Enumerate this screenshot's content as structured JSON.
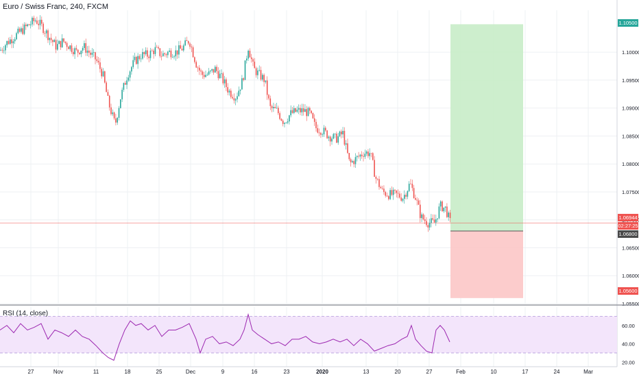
{
  "header": {
    "title": "Euro / Swiss Franc, 240, FXCM"
  },
  "rsi": {
    "label": "RSI (14, close)"
  },
  "badges": {
    "target": {
      "text": "1.10500",
      "color": "#26a69a"
    },
    "current": {
      "text": "1.06944",
      "color": "#ef5350"
    },
    "countdown": {
      "text": "02:27:25",
      "color": "#ef5350"
    },
    "entry": {
      "text": "1.06800",
      "color": "#4a4a4a"
    },
    "stop": {
      "text": "1.05600",
      "color": "#ef5350"
    }
  },
  "colors": {
    "up": "#26a69a",
    "down": "#ef5350",
    "rsi_line": "#9c27b0",
    "rsi_band": "#f3e5fb",
    "profit_zone": "#c8ecc8",
    "loss_zone": "#fcc7c7",
    "grid": "#eef0f3"
  },
  "chart_data": [
    {
      "type": "candlestick",
      "title": "Euro / Swiss Franc, 240, FXCM",
      "ylim": [
        1.055,
        1.1075
      ],
      "y_ticks": [
        "1.10000",
        "1.09500",
        "1.09000",
        "1.08500",
        "1.08000",
        "1.07500",
        "1.07000",
        "1.06500",
        "1.06000",
        "1.05500"
      ],
      "y_tick_values": [
        1.1,
        1.095,
        1.09,
        1.085,
        1.08,
        1.075,
        1.07,
        1.065,
        1.06,
        1.055
      ],
      "x_ticks": [
        "27",
        "Nov",
        "11",
        "18",
        "25",
        "Dec",
        "9",
        "16",
        "23",
        "2020",
        "13",
        "20",
        "27",
        "Feb",
        "10",
        "17",
        "24",
        "Mar"
      ],
      "grid": true,
      "close_path": [
        [
          0,
          1.1003
        ],
        [
          10,
          1.1017
        ],
        [
          20,
          1.1027
        ],
        [
          30,
          1.1037
        ],
        [
          40,
          1.1047
        ],
        [
          52,
          1.1058
        ],
        [
          62,
          1.1045
        ],
        [
          72,
          1.1027
        ],
        [
          82,
          1.101
        ],
        [
          92,
          1.102
        ],
        [
          102,
          1.101
        ],
        [
          112,
          1.1
        ],
        [
          122,
          1.101
        ],
        [
          132,
          1.0997
        ],
        [
          140,
          1.0987
        ],
        [
          150,
          1.096
        ],
        [
          158,
          1.091
        ],
        [
          168,
          1.087
        ],
        [
          176,
          1.092
        ],
        [
          186,
          1.096
        ],
        [
          196,
          1.0983
        ],
        [
          206,
          1.0995
        ],
        [
          216,
          1.0995
        ],
        [
          226,
          1.1005
        ],
        [
          236,
          1.0995
        ],
        [
          246,
          1.1
        ],
        [
          256,
          1.1
        ],
        [
          266,
          1.1007
        ],
        [
          276,
          1.1022
        ],
        [
          286,
          1.098
        ],
        [
          294,
          1.096
        ],
        [
          304,
          1.096
        ],
        [
          314,
          1.097
        ],
        [
          324,
          1.0952
        ],
        [
          334,
          1.093
        ],
        [
          344,
          1.092
        ],
        [
          354,
          1.095
        ],
        [
          362,
          1.101
        ],
        [
          370,
          1.097
        ],
        [
          378,
          1.096
        ],
        [
          386,
          1.095
        ],
        [
          394,
          1.09
        ],
        [
          404,
          1.0895
        ],
        [
          414,
          1.0875
        ],
        [
          424,
          1.089
        ],
        [
          434,
          1.0895
        ],
        [
          444,
          1.0895
        ],
        [
          452,
          1.089
        ],
        [
          460,
          1.0865
        ],
        [
          470,
          1.086
        ],
        [
          480,
          1.085
        ],
        [
          490,
          1.0845
        ],
        [
          500,
          1.0855
        ],
        [
          510,
          1.08
        ],
        [
          520,
          1.081
        ],
        [
          530,
          1.082
        ],
        [
          540,
          1.082
        ],
        [
          548,
          1.0775
        ],
        [
          558,
          1.075
        ],
        [
          568,
          1.0745
        ],
        [
          578,
          1.0745
        ],
        [
          588,
          1.074
        ],
        [
          598,
          1.0765
        ],
        [
          606,
          1.074
        ],
        [
          614,
          1.0705
        ],
        [
          624,
          1.0695
        ],
        [
          634,
          1.0695
        ],
        [
          642,
          1.0725
        ],
        [
          650,
          1.072
        ],
        [
          657,
          1.0694
        ]
      ],
      "levels": {
        "target": 1.105,
        "current": 1.06944,
        "entry": 1.068,
        "stop": 1.056
      }
    },
    {
      "type": "line",
      "title": "RSI (14, close)",
      "ylim": [
        15,
        80
      ],
      "y_ticks": [
        "60.00",
        "40.00",
        "20.00"
      ],
      "y_tick_values": [
        60,
        40,
        20
      ],
      "bands": [
        30,
        70
      ],
      "points": [
        [
          0,
          55
        ],
        [
          10,
          60
        ],
        [
          20,
          52
        ],
        [
          30,
          62
        ],
        [
          40,
          55
        ],
        [
          50,
          58
        ],
        [
          60,
          62
        ],
        [
          70,
          45
        ],
        [
          80,
          55
        ],
        [
          90,
          52
        ],
        [
          100,
          48
        ],
        [
          110,
          55
        ],
        [
          120,
          48
        ],
        [
          130,
          45
        ],
        [
          140,
          38
        ],
        [
          150,
          30
        ],
        [
          158,
          25
        ],
        [
          166,
          22
        ],
        [
          174,
          40
        ],
        [
          182,
          55
        ],
        [
          190,
          65
        ],
        [
          198,
          60
        ],
        [
          206,
          62
        ],
        [
          216,
          55
        ],
        [
          226,
          60
        ],
        [
          236,
          48
        ],
        [
          246,
          55
        ],
        [
          256,
          55
        ],
        [
          266,
          58
        ],
        [
          276,
          62
        ],
        [
          286,
          45
        ],
        [
          292,
          30
        ],
        [
          300,
          45
        ],
        [
          310,
          48
        ],
        [
          320,
          40
        ],
        [
          330,
          42
        ],
        [
          340,
          38
        ],
        [
          350,
          45
        ],
        [
          356,
          55
        ],
        [
          362,
          72
        ],
        [
          368,
          55
        ],
        [
          376,
          50
        ],
        [
          386,
          45
        ],
        [
          396,
          40
        ],
        [
          406,
          42
        ],
        [
          416,
          38
        ],
        [
          426,
          45
        ],
        [
          436,
          45
        ],
        [
          446,
          48
        ],
        [
          456,
          42
        ],
        [
          466,
          40
        ],
        [
          476,
          42
        ],
        [
          486,
          45
        ],
        [
          496,
          42
        ],
        [
          506,
          45
        ],
        [
          516,
          38
        ],
        [
          526,
          45
        ],
        [
          536,
          40
        ],
        [
          546,
          32
        ],
        [
          556,
          35
        ],
        [
          566,
          38
        ],
        [
          576,
          40
        ],
        [
          586,
          45
        ],
        [
          594,
          48
        ],
        [
          600,
          60
        ],
        [
          606,
          45
        ],
        [
          614,
          38
        ],
        [
          622,
          32
        ],
        [
          630,
          30
        ],
        [
          636,
          55
        ],
        [
          642,
          60
        ],
        [
          648,
          55
        ],
        [
          656,
          42
        ]
      ]
    }
  ]
}
